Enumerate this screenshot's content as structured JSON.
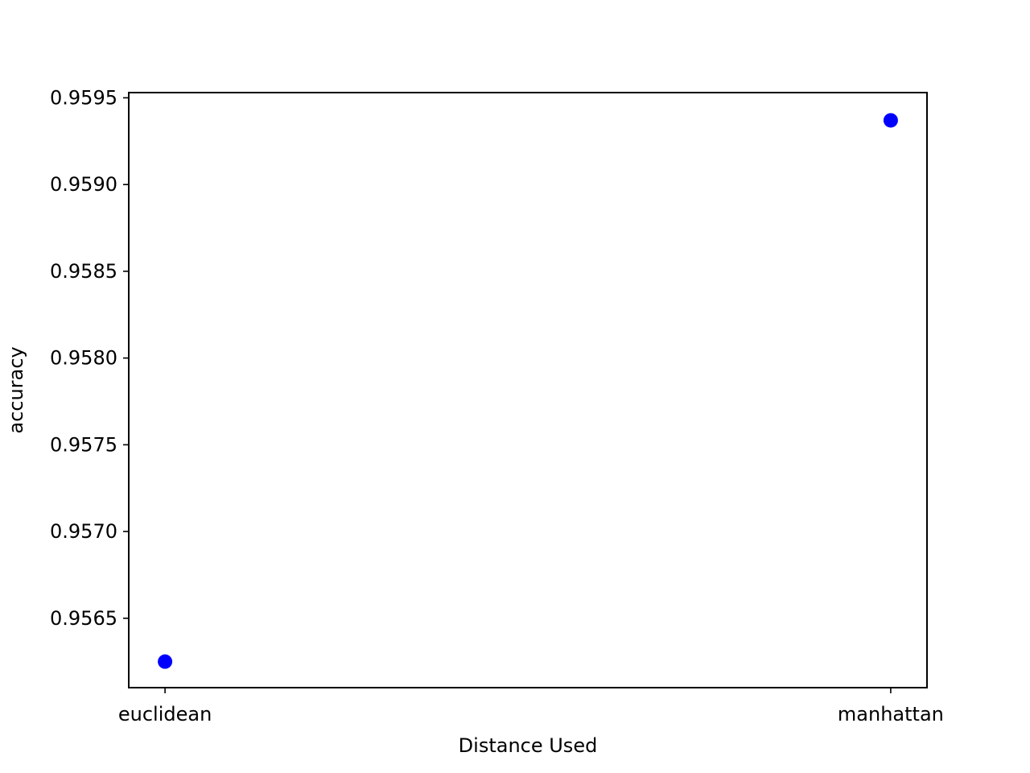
{
  "chart_data": {
    "type": "scatter",
    "title": "",
    "xlabel": "Distance Used",
    "ylabel": "accuracy",
    "categories": [
      "euclidean",
      "manhattan"
    ],
    "values": [
      0.95625,
      0.95937
    ],
    "yticks": [
      0.9565,
      0.957,
      0.9575,
      0.958,
      0.9585,
      0.959,
      0.9595
    ],
    "ytick_labels": [
      "0.9565",
      "0.9570",
      "0.9575",
      "0.9580",
      "0.9585",
      "0.9590",
      "0.9595"
    ],
    "ylim": [
      0.9561,
      0.95953
    ],
    "grid": false,
    "legend": "none",
    "marker_color": "#0000ff"
  }
}
